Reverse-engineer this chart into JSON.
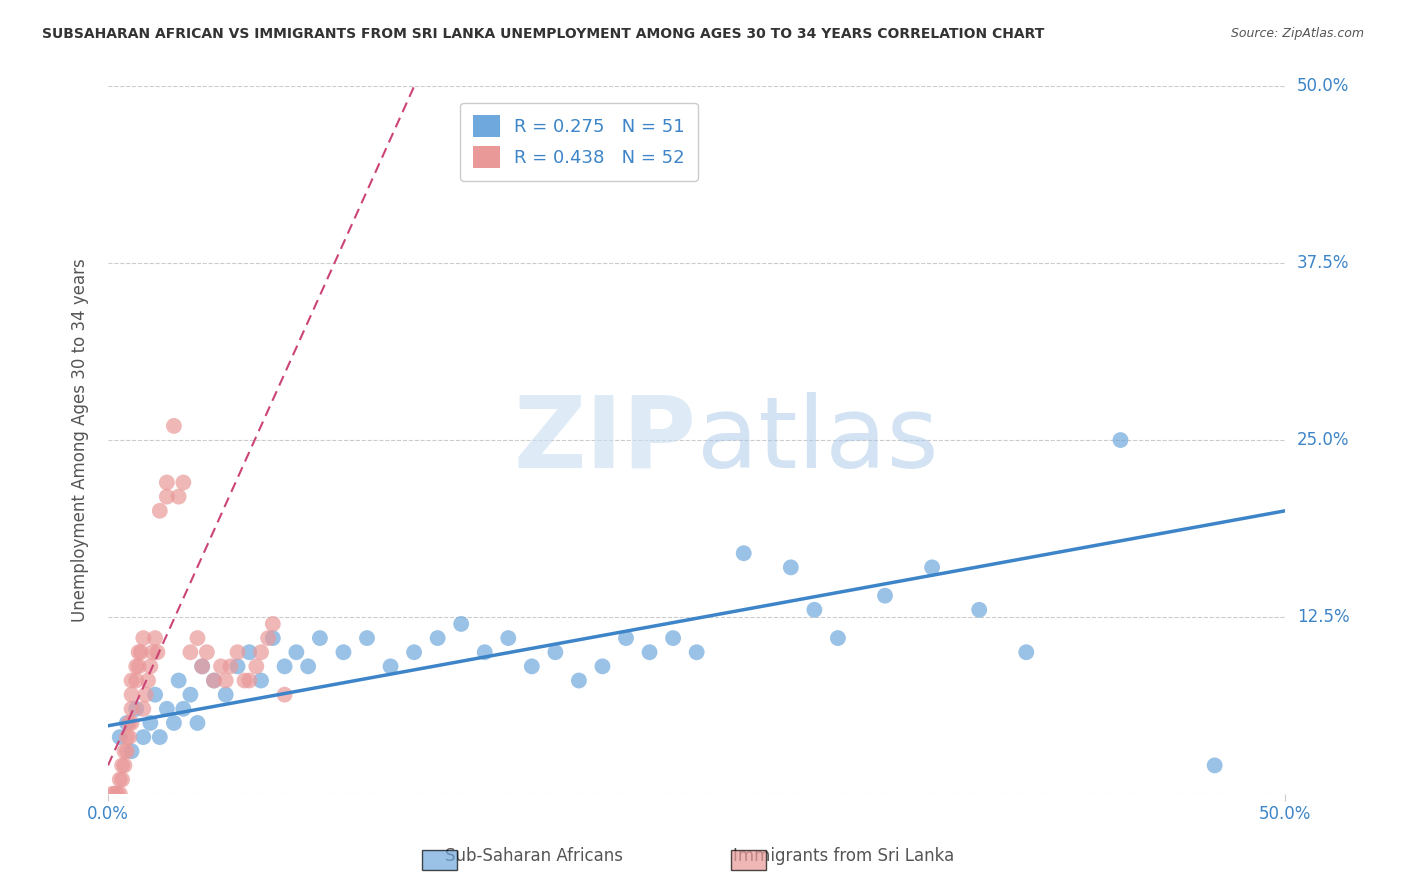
{
  "title": "SUBSAHARAN AFRICAN VS IMMIGRANTS FROM SRI LANKA UNEMPLOYMENT AMONG AGES 30 TO 34 YEARS CORRELATION CHART",
  "source": "Source: ZipAtlas.com",
  "ylabel": "Unemployment Among Ages 30 to 34 years",
  "ytick_values": [
    0,
    0.125,
    0.25,
    0.375,
    0.5
  ],
  "ytick_labels": [
    "",
    "12.5%",
    "25.0%",
    "37.5%",
    "50.0%"
  ],
  "xlim": [
    0,
    0.5
  ],
  "ylim": [
    0,
    0.5
  ],
  "blue_color": "#6fa8dc",
  "pink_color": "#ea9999",
  "blue_line_color": "#3d85c8",
  "pink_line_color": "#cc4477",
  "legend_blue_R": "R = 0.275",
  "legend_blue_N": "N = 51",
  "legend_pink_R": "R = 0.438",
  "legend_pink_N": "N = 52",
  "watermark_zip": "ZIP",
  "watermark_atlas": "atlas",
  "blue_scatter_x": [
    0.005,
    0.008,
    0.01,
    0.012,
    0.015,
    0.018,
    0.02,
    0.022,
    0.025,
    0.028,
    0.03,
    0.032,
    0.035,
    0.038,
    0.04,
    0.045,
    0.05,
    0.055,
    0.06,
    0.065,
    0.07,
    0.075,
    0.08,
    0.085,
    0.09,
    0.1,
    0.11,
    0.12,
    0.13,
    0.14,
    0.15,
    0.16,
    0.17,
    0.18,
    0.19,
    0.2,
    0.21,
    0.22,
    0.23,
    0.24,
    0.25,
    0.27,
    0.29,
    0.31,
    0.33,
    0.35,
    0.37,
    0.39,
    0.43,
    0.47,
    0.3
  ],
  "blue_scatter_y": [
    0.04,
    0.05,
    0.03,
    0.06,
    0.04,
    0.05,
    0.07,
    0.04,
    0.06,
    0.05,
    0.08,
    0.06,
    0.07,
    0.05,
    0.09,
    0.08,
    0.07,
    0.09,
    0.1,
    0.08,
    0.11,
    0.09,
    0.1,
    0.09,
    0.11,
    0.1,
    0.11,
    0.09,
    0.1,
    0.11,
    0.12,
    0.1,
    0.11,
    0.09,
    0.1,
    0.08,
    0.09,
    0.11,
    0.1,
    0.11,
    0.1,
    0.17,
    0.16,
    0.11,
    0.14,
    0.16,
    0.13,
    0.1,
    0.25,
    0.02,
    0.13
  ],
  "pink_scatter_x": [
    0.002,
    0.003,
    0.004,
    0.005,
    0.005,
    0.006,
    0.006,
    0.007,
    0.007,
    0.008,
    0.008,
    0.009,
    0.009,
    0.01,
    0.01,
    0.01,
    0.01,
    0.012,
    0.012,
    0.013,
    0.013,
    0.014,
    0.015,
    0.015,
    0.016,
    0.017,
    0.018,
    0.019,
    0.02,
    0.021,
    0.022,
    0.025,
    0.025,
    0.028,
    0.03,
    0.032,
    0.035,
    0.038,
    0.04,
    0.042,
    0.045,
    0.048,
    0.05,
    0.052,
    0.055,
    0.058,
    0.06,
    0.063,
    0.065,
    0.068,
    0.07,
    0.075
  ],
  "pink_scatter_y": [
    0.0,
    0.0,
    0.0,
    0.0,
    0.01,
    0.01,
    0.02,
    0.02,
    0.03,
    0.03,
    0.04,
    0.04,
    0.05,
    0.05,
    0.06,
    0.07,
    0.08,
    0.08,
    0.09,
    0.09,
    0.1,
    0.1,
    0.11,
    0.06,
    0.07,
    0.08,
    0.09,
    0.1,
    0.11,
    0.1,
    0.2,
    0.21,
    0.22,
    0.26,
    0.21,
    0.22,
    0.1,
    0.11,
    0.09,
    0.1,
    0.08,
    0.09,
    0.08,
    0.09,
    0.1,
    0.08,
    0.08,
    0.09,
    0.1,
    0.11,
    0.12,
    0.07
  ],
  "blue_trend_x": [
    0.0,
    0.5
  ],
  "blue_trend_y": [
    0.048,
    0.2
  ],
  "pink_trend_x": [
    0.0,
    0.13
  ],
  "pink_trend_y": [
    0.02,
    0.5
  ]
}
